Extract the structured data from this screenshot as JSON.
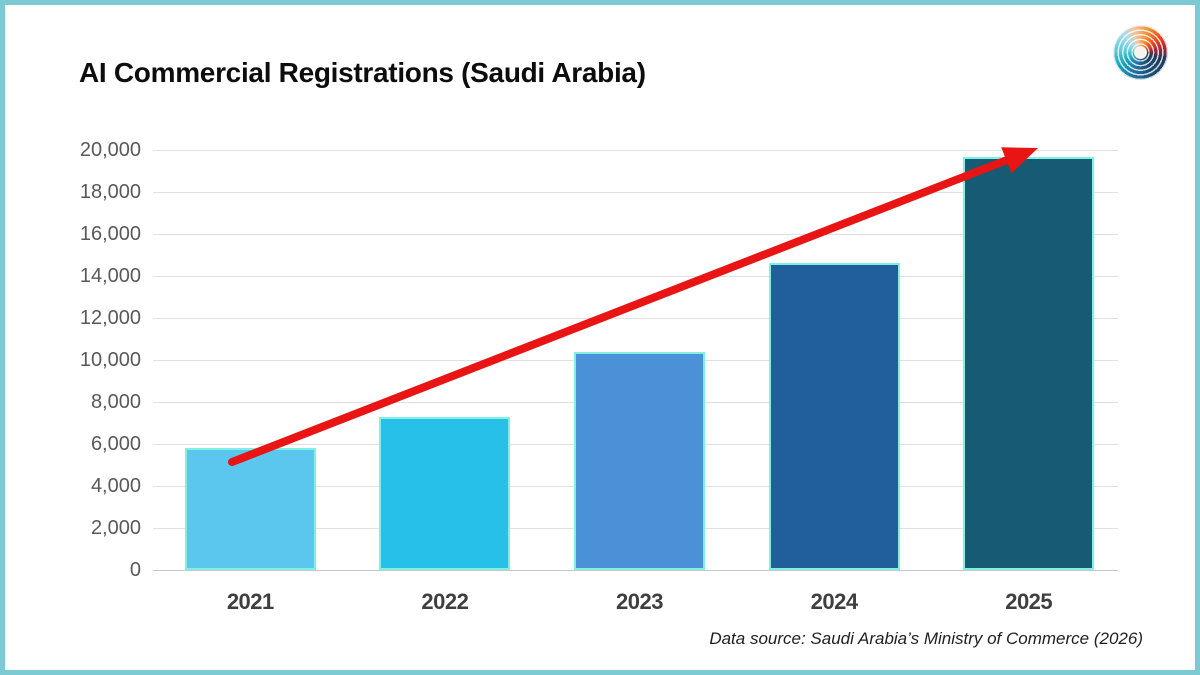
{
  "header": {
    "title": "AI Commercial Registrations (Saudi Arabia)"
  },
  "logo": {
    "name": "swirl-spiral-logo",
    "palette": [
      "#ef8c2e",
      "#e8471f",
      "#1d3a5e",
      "#2471a3",
      "#17a2b8",
      "#5dccd8"
    ]
  },
  "chart_data": {
    "type": "bar",
    "title": "AI Commercial Registrations (Saudi Arabia)",
    "categories": [
      "2021",
      "2022",
      "2023",
      "2024",
      "2025"
    ],
    "values": [
      5800,
      7300,
      10400,
      14600,
      19650
    ],
    "bar_colors": [
      "#5BC7EF",
      "#27C0E8",
      "#4B91D8",
      "#215F9B",
      "#175A74"
    ],
    "bar_border_color": "#7FF0E3",
    "xlabel": "",
    "ylabel": "",
    "ylim": [
      0,
      20000
    ],
    "ytick_values": [
      0,
      2000,
      4000,
      6000,
      8000,
      10000,
      12000,
      14000,
      16000,
      18000,
      20000
    ],
    "ytick_labels": [
      "0",
      "2,000",
      "4,000",
      "6,000",
      "8,000",
      "10,000",
      "12,000",
      "14,000",
      "16,000",
      "18,000",
      "20,000"
    ],
    "grid": true,
    "legend": null,
    "annotation": {
      "type": "trend-arrow",
      "description": "red upward arrow from 2021 bar to top of 2025 bar",
      "color": "#E91414"
    }
  },
  "footer": {
    "source_text": "Data source: Saudi Arabia’s Ministry of Commerce (2026)"
  },
  "frame": {
    "border_color": "#7CCBD4"
  }
}
